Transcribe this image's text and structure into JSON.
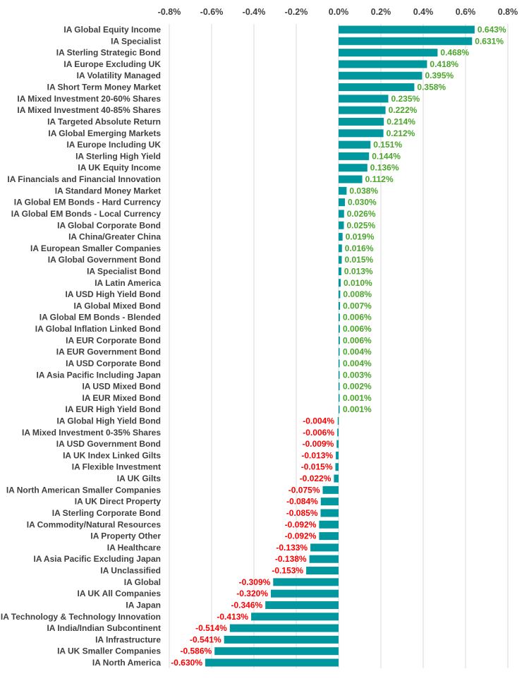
{
  "chart_data": {
    "type": "bar",
    "orientation": "horizontal",
    "title": "",
    "xlabel": "",
    "ylabel": "",
    "xlim": [
      -0.8,
      0.8
    ],
    "xticks": [
      "-0.8%",
      "-0.6%",
      "-0.4%",
      "-0.2%",
      "0.0%",
      "0.2%",
      "0.4%",
      "0.6%",
      "0.8%"
    ],
    "xtick_values": [
      -0.8,
      -0.6,
      -0.4,
      -0.2,
      0,
      0.2,
      0.4,
      0.6,
      0.8
    ],
    "x_axis_position": "top",
    "grid": "vertical",
    "colors": {
      "bar": "#00979f",
      "positive_label": "#4aa52a",
      "negative_label": "#ff0000",
      "grid": "#d9d9d9"
    },
    "categories": [
      "IA Global Equity Income",
      "IA Specialist",
      "IA Sterling Strategic Bond",
      "IA Europe Excluding UK",
      "IA Volatility Managed",
      "IA Short Term Money Market",
      "IA Mixed Investment 20-60% Shares",
      "IA Mixed Investment 40-85% Shares",
      "IA Targeted Absolute Return",
      "IA Global Emerging Markets",
      "IA Europe Including UK",
      "IA Sterling High Yield",
      "IA UK Equity Income",
      "IA Financials and Financial Innovation",
      "IA Standard Money Market",
      "IA Global EM Bonds - Hard Currency",
      "IA Global EM Bonds - Local Currency",
      "IA Global Corporate Bond",
      "IA China/Greater China",
      "IA European Smaller Companies",
      "IA Global Government Bond",
      "IA Specialist Bond",
      "IA Latin America",
      "IA USD High Yield Bond",
      "IA Global Mixed Bond",
      "IA Global EM Bonds - Blended",
      "IA Global Inflation Linked Bond",
      "IA EUR Corporate Bond",
      "IA EUR Government Bond",
      "IA USD Corporate Bond",
      "IA Asia Pacific Including Japan",
      "IA USD Mixed Bond",
      "IA EUR Mixed Bond",
      "IA EUR High Yield Bond",
      "IA Global High Yield Bond",
      "IA Mixed Investment 0-35% Shares",
      "IA USD Government Bond",
      "IA UK Index Linked Gilts",
      "IA Flexible Investment",
      "IA UK Gilts",
      "IA North American Smaller Companies",
      "IA UK Direct Property",
      "IA Sterling Corporate Bond",
      "IA Commodity/Natural Resources",
      "IA Property Other",
      "IA Healthcare",
      "IA Asia Pacific Excluding Japan",
      "IA Unclassified",
      "IA Global",
      "IA UK All Companies",
      "IA Japan",
      "IA Technology & Technology Innovation",
      "IA India/Indian Subcontinent",
      "IA Infrastructure",
      "IA UK Smaller Companies",
      "IA North America"
    ],
    "values": [
      0.643,
      0.631,
      0.468,
      0.418,
      0.395,
      0.358,
      0.235,
      0.222,
      0.214,
      0.212,
      0.151,
      0.144,
      0.136,
      0.112,
      0.038,
      0.03,
      0.026,
      0.025,
      0.019,
      0.016,
      0.015,
      0.013,
      0.01,
      0.008,
      0.007,
      0.006,
      0.006,
      0.006,
      0.004,
      0.004,
      0.003,
      0.002,
      0.001,
      0.001,
      -0.004,
      -0.006,
      -0.009,
      -0.013,
      -0.015,
      -0.022,
      -0.075,
      -0.084,
      -0.085,
      -0.092,
      -0.092,
      -0.133,
      -0.138,
      -0.153,
      -0.309,
      -0.32,
      -0.346,
      -0.413,
      -0.514,
      -0.541,
      -0.586,
      -0.63
    ],
    "data_labels": [
      "0.643%",
      "0.631%",
      "0.468%",
      "0.418%",
      "0.395%",
      "0.358%",
      "0.235%",
      "0.222%",
      "0.214%",
      "0.212%",
      "0.151%",
      "0.144%",
      "0.136%",
      "0.112%",
      "0.038%",
      "0.030%",
      "0.026%",
      "0.025%",
      "0.019%",
      "0.016%",
      "0.015%",
      "0.013%",
      "0.010%",
      "0.008%",
      "0.007%",
      "0.006%",
      "0.006%",
      "0.006%",
      "0.004%",
      "0.004%",
      "0.003%",
      "0.002%",
      "0.001%",
      "0.001%",
      "-0.004%",
      "-0.006%",
      "-0.009%",
      "-0.013%",
      "-0.015%",
      "-0.022%",
      "-0.075%",
      "-0.084%",
      "-0.085%",
      "-0.092%",
      "-0.092%",
      "-0.133%",
      "-0.138%",
      "-0.153%",
      "-0.309%",
      "-0.320%",
      "-0.346%",
      "-0.413%",
      "-0.514%",
      "-0.541%",
      "-0.586%",
      "-0.630%"
    ]
  }
}
